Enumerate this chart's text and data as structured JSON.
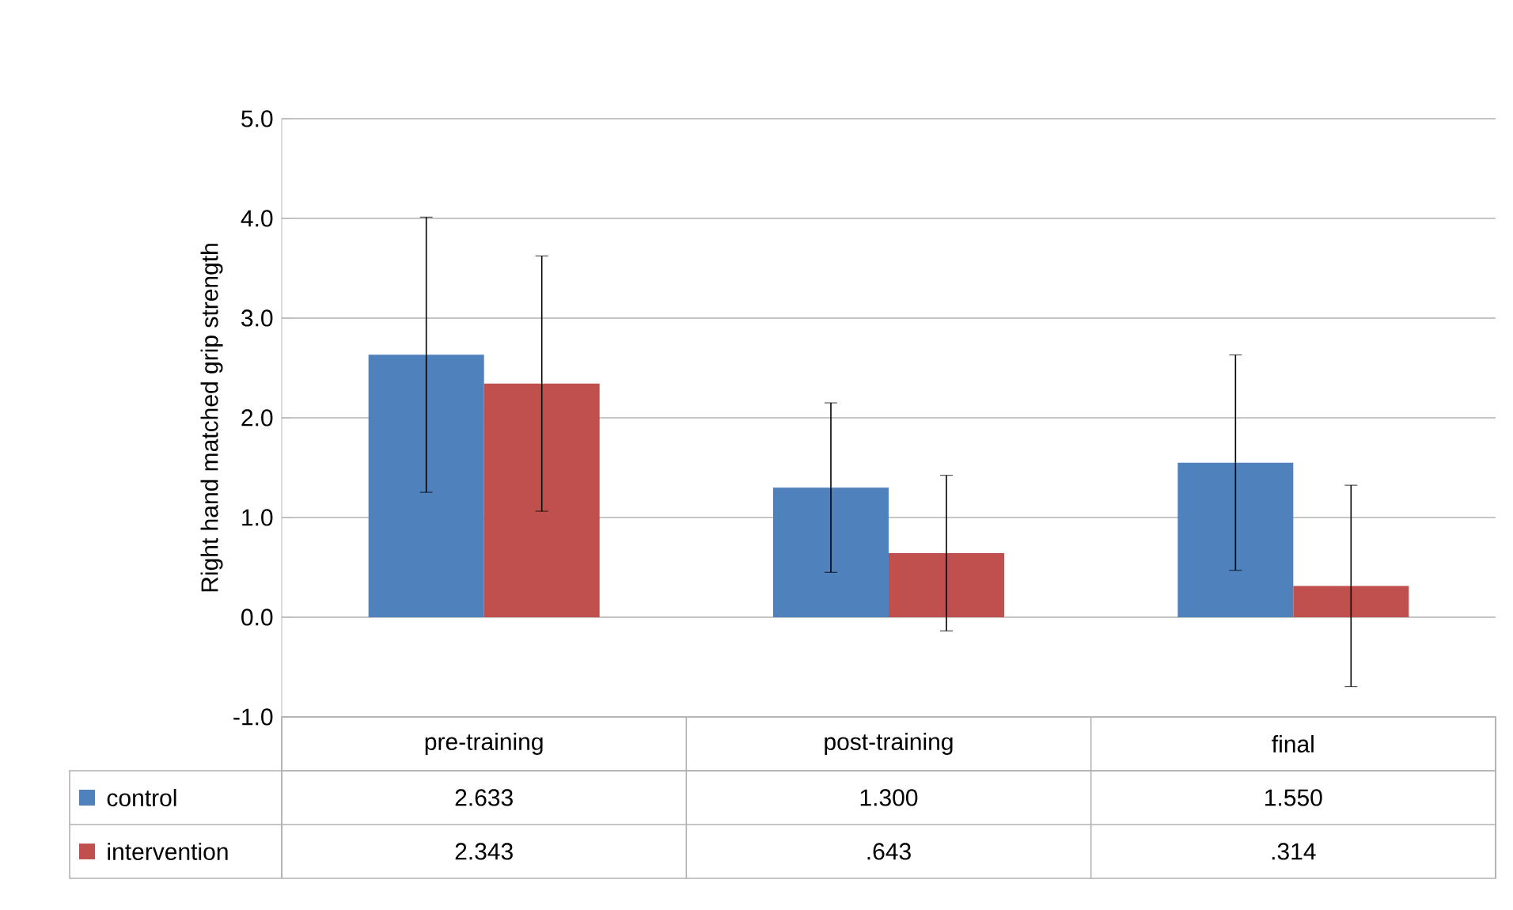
{
  "chart_data": {
    "type": "bar",
    "ylabel": "Right hand matched grip strength",
    "categories": [
      "pre-training",
      "post-training",
      "final"
    ],
    "series": [
      {
        "name": "control",
        "color": "#4f81bd",
        "values": [
          2.633,
          1.3,
          1.55
        ],
        "errors": [
          1.38,
          0.85,
          1.08
        ],
        "value_labels": [
          "2.633",
          "1.300",
          "1.550"
        ]
      },
      {
        "name": "intervention",
        "color": "#c0504d",
        "values": [
          2.343,
          0.643,
          0.314
        ],
        "errors": [
          1.28,
          0.78,
          1.01
        ],
        "value_labels": [
          "2.343",
          ".643",
          ".314"
        ]
      }
    ],
    "ylim": [
      -1,
      5
    ],
    "yticks": [
      {
        "value": -1,
        "label": "-1.0"
      },
      {
        "value": 0,
        "label": "0.0"
      },
      {
        "value": 1,
        "label": "1.0"
      },
      {
        "value": 2,
        "label": "2.0"
      },
      {
        "value": 3,
        "label": "3.0"
      },
      {
        "value": 4,
        "label": "4.0"
      },
      {
        "value": 5,
        "label": "5.0"
      }
    ],
    "grid": "y",
    "legend": "bottom left"
  }
}
